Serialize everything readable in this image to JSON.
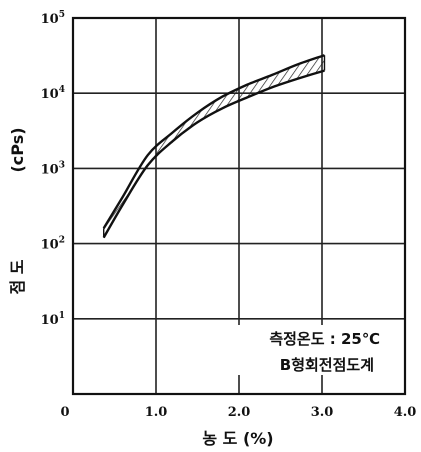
{
  "chart_data": {
    "type": "area",
    "x_scale": "linear",
    "y_scale": "log",
    "xlim": [
      0,
      4.0
    ],
    "ylim": [
      1,
      100000
    ],
    "grid": true,
    "x_ticks": [
      "0",
      "1.0",
      "2.0",
      "3.0",
      "4.0"
    ],
    "y_ticks": [
      {
        "base": "10",
        "exp": "5"
      },
      {
        "base": "10",
        "exp": "4"
      },
      {
        "base": "10",
        "exp": "3"
      },
      {
        "base": "10",
        "exp": "2"
      },
      {
        "base": "10",
        "exp": "1"
      }
    ],
    "xlabel": "농 도 (%)",
    "ylabel_main": "점 도",
    "ylabel_unit": "(cPs)",
    "annotations": [
      "측정온도 : 25℃",
      "B형회전점도계"
    ],
    "series": [
      {
        "x": [
          0.37,
          0.6,
          0.9,
          1.2,
          1.5,
          1.8,
          2.1,
          2.4,
          2.7,
          3.03
        ],
        "upper": [
          160,
          420,
          1500,
          3000,
          5500,
          9000,
          13000,
          17500,
          24000,
          32000
        ],
        "lower": [
          120,
          330,
          1100,
          2300,
          4100,
          6300,
          8800,
          12000,
          15500,
          20000
        ]
      }
    ],
    "colors": {
      "line": "#111111",
      "grid": "#222222",
      "hatch": "#222222",
      "background": "#ffffff"
    }
  }
}
